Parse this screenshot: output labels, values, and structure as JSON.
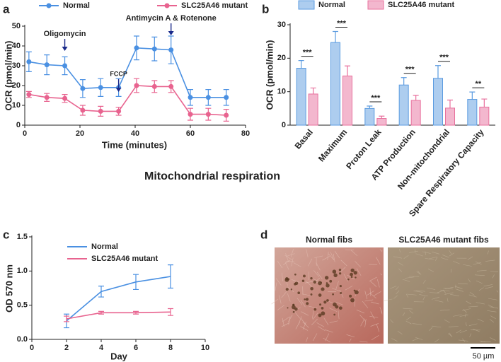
{
  "chart_data": [
    {
      "type": "line",
      "panel": "a",
      "xlabel": "Time (minutes)",
      "ylabel": "OCR (pmol/min)",
      "x": [
        1.5,
        8,
        14.5,
        21,
        27.5,
        34,
        40.5,
        47,
        53,
        60,
        66.5,
        73
      ],
      "series": [
        {
          "name": "Normal",
          "color": "#4a90e2",
          "values": [
            32,
            30.5,
            30,
            18.5,
            19,
            19,
            39,
            38.5,
            38,
            14,
            14,
            14
          ],
          "errors": [
            5,
            5,
            4.5,
            4.5,
            4.5,
            4.5,
            6,
            6,
            7,
            4,
            4,
            4
          ]
        },
        {
          "name": "SLC25A46 mutant",
          "color": "#e8638f",
          "values": [
            15.5,
            14,
            13.5,
            7.5,
            7,
            7,
            20,
            19.5,
            19.5,
            5.5,
            5.5,
            5
          ],
          "errors": [
            1.5,
            2,
            2,
            2.5,
            2.5,
            2,
            3.5,
            3,
            3,
            3,
            3,
            3
          ]
        }
      ],
      "annotations": [
        {
          "text": "Oligomycin",
          "x": 14.5
        },
        {
          "text": "FCCP",
          "x": 34
        },
        {
          "text": "Antimycin A & Rotenone",
          "x": 53
        }
      ],
      "xlim": [
        0,
        80
      ],
      "xticks": [
        0,
        20,
        40,
        60,
        80
      ],
      "ylim": [
        0,
        50
      ],
      "yticks": [
        0,
        10,
        20,
        30,
        40,
        50
      ]
    },
    {
      "type": "bar",
      "panel": "b",
      "ylabel": "OCR (pmol/min)",
      "categories": [
        "Basal",
        "Maximum",
        "Proton Leak",
        "ATP Production",
        "Non-mitochondrial",
        "Spare Respiratory Capacity"
      ],
      "series": [
        {
          "name": "Normal",
          "color": "#5b9be0",
          "values": [
            17,
            24.7,
            5,
            12,
            14,
            7.7
          ],
          "errors": [
            2.3,
            3.3,
            0.7,
            2.2,
            3.8,
            2.2
          ]
        },
        {
          "name": "SLC25A46 mutant",
          "color": "#e8709d",
          "values": [
            9.3,
            14.7,
            2,
            7.4,
            5.1,
            5.4
          ],
          "errors": [
            1.8,
            3,
            0.7,
            1.5,
            2.4,
            2.4
          ]
        }
      ],
      "significance": [
        "***",
        "***",
        "***",
        "***",
        "***",
        "**"
      ],
      "ylim": [
        0,
        30
      ],
      "yticks": [
        0,
        10,
        20,
        30
      ]
    },
    {
      "type": "line",
      "panel": "c",
      "xlabel": "Day",
      "ylabel": "OD 570 nm",
      "x": [
        2,
        4,
        6,
        8
      ],
      "series": [
        {
          "name": "Normal",
          "color": "#4a90e2",
          "values": [
            0.27,
            0.7,
            0.84,
            0.92
          ],
          "errors": [
            0.1,
            0.08,
            0.11,
            0.17
          ]
        },
        {
          "name": "SLC25A46 mutant",
          "color": "#e8638f",
          "values": [
            0.3,
            0.39,
            0.39,
            0.4
          ],
          "errors": [
            0.04,
            0.02,
            0.02,
            0.05
          ]
        }
      ],
      "xlim": [
        0,
        10
      ],
      "xticks": [
        0,
        2,
        4,
        6,
        8,
        10
      ],
      "ylim": [
        0,
        1.5
      ],
      "yticks": [
        {
          "value": 0,
          "label": "0.0"
        },
        {
          "value": 0.5,
          "label": "0.5"
        },
        {
          "value": 1,
          "label": "1.0"
        },
        {
          "value": 1.5,
          "label": "1.5"
        }
      ]
    }
  ],
  "caption": "Mitochondrial respiration",
  "images": {
    "panel": "d",
    "titles": [
      "Normal fibs",
      "SLC25A46 mutant fibs"
    ],
    "scale_bar": "50 µm"
  }
}
